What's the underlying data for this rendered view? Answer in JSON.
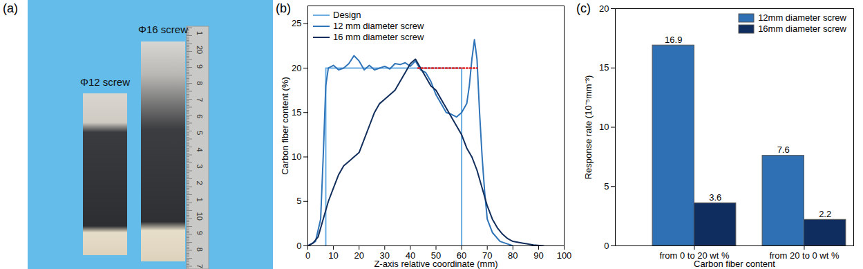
{
  "photo": {
    "panel_label": "(a)",
    "labels": [
      "Φ12 screw",
      "Φ16 screw"
    ],
    "ruler_labels": [
      "1",
      "20",
      "9",
      "8",
      "7",
      "6",
      "5",
      "4",
      "3",
      "2",
      "1",
      "10",
      "9",
      "8",
      "7"
    ]
  },
  "chart_data": [
    {
      "type": "line",
      "panel_label": "(b)",
      "x_label": "Z-axis relative coordinate (mm)",
      "y_label": "Carbon fiber content (%)",
      "xlim": [
        0,
        100
      ],
      "xticks": [
        0,
        10,
        20,
        30,
        40,
        50,
        60,
        70,
        80,
        90,
        100
      ],
      "ylim": [
        0,
        27
      ],
      "yticks": [
        0,
        5,
        10,
        15,
        20,
        25
      ],
      "legend": "top-left",
      "series": [
        {
          "name": "Design",
          "color": "#6aaee3",
          "line_style": "solid",
          "x": [
            7,
            7,
            60,
            60
          ],
          "values": [
            0,
            20,
            20,
            0
          ]
        },
        {
          "name": "12 mm diameter screw",
          "color": "#2f74b8",
          "line_style": "solid",
          "x": [
            0,
            3,
            5,
            6,
            7,
            8,
            10,
            12,
            14,
            16,
            18,
            20,
            22,
            24,
            26,
            28,
            30,
            32,
            34,
            36,
            38,
            40,
            42,
            44,
            46,
            48,
            50,
            52,
            54,
            56,
            58,
            60,
            62,
            63,
            64,
            65,
            66,
            67,
            68,
            69,
            70,
            72,
            75,
            78,
            80
          ],
          "values": [
            0,
            0.5,
            3,
            10,
            18,
            20,
            20.3,
            19.8,
            20,
            20.5,
            21.4,
            20.8,
            19.8,
            20.3,
            19.8,
            20,
            20.2,
            19.9,
            20.5,
            20.4,
            20.6,
            20.2,
            20.8,
            19.8,
            19.5,
            18.5,
            17,
            16,
            15,
            14.8,
            14.5,
            15,
            16,
            18,
            21,
            23.2,
            21,
            15,
            10,
            6,
            3,
            1.5,
            0.5,
            0.2,
            0
          ]
        },
        {
          "name": "16 mm diameter screw",
          "color": "#112d5c",
          "line_style": "solid",
          "x": [
            0,
            2,
            4,
            6,
            8,
            10,
            12,
            14,
            16,
            18,
            20,
            22,
            24,
            26,
            28,
            30,
            32,
            34,
            36,
            38,
            40,
            42,
            44,
            46,
            48,
            50,
            52,
            54,
            56,
            58,
            60,
            62,
            64,
            66,
            68,
            70,
            72,
            74,
            76,
            78,
            80,
            84,
            88,
            92
          ],
          "values": [
            0,
            0.3,
            1,
            3,
            5,
            6.5,
            8,
            9,
            9.5,
            10,
            10.5,
            12,
            13.5,
            15,
            16,
            16.5,
            17,
            17.5,
            18.5,
            19.5,
            20.5,
            21,
            20,
            19,
            18,
            17.5,
            16.5,
            15.5,
            14.5,
            13.5,
            12.5,
            11,
            10,
            8.5,
            6.5,
            4.5,
            3,
            2,
            1.3,
            0.8,
            0.5,
            0.3,
            0.1,
            0
          ]
        }
      ],
      "reference_lines": [
        {
          "color": "#e02020",
          "line_style": "dotted",
          "x": [
            43,
            66
          ],
          "values": [
            20,
            20
          ]
        }
      ]
    },
    {
      "type": "bar",
      "panel_label": "(c)",
      "x_label": "Carbon fiber content",
      "y_label": "Response rate (10⁻⁵mm⁻³)",
      "categories": [
        "from 0 to 20 wt %",
        "from 20 to 0 wt %"
      ],
      "ylim": [
        0,
        20
      ],
      "yticks": [
        0,
        5,
        10,
        15,
        20
      ],
      "legend": "top-right",
      "data_labels": true,
      "series": [
        {
          "name": "12mm diameter screw",
          "color": "#2f6fb3",
          "values": [
            16.9,
            7.6
          ]
        },
        {
          "name": "16mm diameter screw",
          "color": "#0f2d5e",
          "values": [
            3.6,
            2.2
          ]
        }
      ]
    }
  ]
}
